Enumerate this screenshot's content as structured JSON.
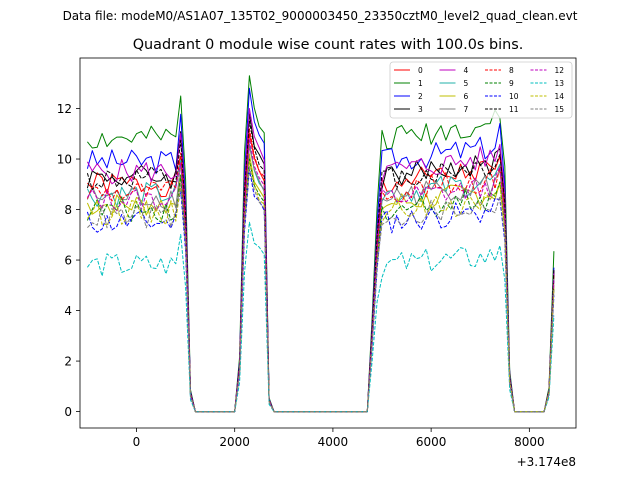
{
  "chart_data": {
    "type": "line",
    "suptitle": "Data file: modeM0/AS1A07_135T02_9000003450_23350cztM0_level2_quad_clean.evt",
    "title": "Quadrant 0 module wise count rates with 100.0s bins.",
    "xlabel": "",
    "ylabel": "",
    "x_offset_label": "+3.174e8",
    "xlim": [
      -1150,
      8950
    ],
    "ylim": [
      -0.65,
      14.0
    ],
    "x_ticks": [
      0,
      2000,
      4000,
      6000,
      8000
    ],
    "x_tick_labels": [
      "0",
      "2000",
      "4000",
      "6000",
      "8000"
    ],
    "y_ticks": [
      0,
      2,
      4,
      6,
      8,
      10,
      12
    ],
    "y_tick_labels": [
      "0",
      "2",
      "4",
      "6",
      "8",
      "10",
      "12"
    ],
    "grid": false,
    "legend_position": "top-right",
    "legend_columns": 4,
    "x": [
      -1000,
      -900,
      -800,
      -700,
      -600,
      -500,
      -400,
      -300,
      -200,
      -100,
      0,
      100,
      200,
      300,
      400,
      500,
      600,
      700,
      800,
      900,
      1000,
      1100,
      1200,
      1300,
      1400,
      1500,
      1600,
      1700,
      1800,
      1900,
      2000,
      2100,
      2200,
      2300,
      2400,
      2500,
      2600,
      2700,
      2800,
      2900,
      3000,
      3100,
      3200,
      3300,
      3400,
      3500,
      3600,
      3700,
      3800,
      3900,
      4000,
      4100,
      4200,
      4300,
      4400,
      4500,
      4600,
      4700,
      4800,
      4900,
      5000,
      5100,
      5200,
      5300,
      5400,
      5500,
      5600,
      5700,
      5800,
      5900,
      6000,
      6100,
      6200,
      6300,
      6400,
      6500,
      6600,
      6700,
      6800,
      6900,
      7000,
      7100,
      7200,
      7300,
      7400,
      7500,
      7600,
      7700,
      7800,
      7900,
      8000,
      8100,
      8200,
      8300,
      8400,
      8500
    ],
    "series": [
      {
        "name": "0",
        "color": "#ff0000",
        "style": "solid",
        "level": 9.0,
        "peak1": 11.0,
        "peak2": 10.4,
        "last": 5.6,
        "seed": 1
      },
      {
        "name": "1",
        "color": "#008000",
        "style": "solid",
        "level": 10.8,
        "peak1": 13.3,
        "peak2": 12.2,
        "last": 6.35,
        "seed": 2
      },
      {
        "name": "2",
        "color": "#0000ff",
        "style": "solid",
        "level": 9.9,
        "peak1": 12.8,
        "peak2": 11.8,
        "last": 5.7,
        "seed": 3
      },
      {
        "name": "3",
        "color": "#000000",
        "style": "solid",
        "level": 9.3,
        "peak1": 11.8,
        "peak2": 11.0,
        "last": 5.5,
        "seed": 4
      },
      {
        "name": "4",
        "color": "#bf00bf",
        "style": "solid",
        "level": 9.5,
        "peak1": 12.0,
        "peak2": 11.0,
        "last": 5.6,
        "seed": 5
      },
      {
        "name": "5",
        "color": "#20b2aa",
        "style": "solid",
        "level": 8.6,
        "peak1": 10.6,
        "peak2": 10.0,
        "last": 5.3,
        "seed": 6
      },
      {
        "name": "6",
        "color": "#bfbf00",
        "style": "solid",
        "level": 8.2,
        "peak1": 10.2,
        "peak2": 9.5,
        "last": 5.0,
        "seed": 7
      },
      {
        "name": "7",
        "color": "#808080",
        "style": "solid",
        "level": 8.5,
        "peak1": 10.5,
        "peak2": 9.8,
        "last": 5.2,
        "seed": 8
      },
      {
        "name": "8",
        "color": "#ff0000",
        "style": "dashed",
        "level": 8.7,
        "peak1": 11.2,
        "peak2": 10.2,
        "last": 5.4,
        "seed": 9
      },
      {
        "name": "9",
        "color": "#008000",
        "style": "dashed",
        "level": 8.0,
        "peak1": 10.0,
        "peak2": 9.4,
        "last": 4.9,
        "seed": 10
      },
      {
        "name": "10",
        "color": "#0000ff",
        "style": "dashed",
        "level": 7.5,
        "peak1": 9.6,
        "peak2": 8.9,
        "last": 4.6,
        "seed": 11
      },
      {
        "name": "11",
        "color": "#000000",
        "style": "dashed",
        "level": 9.2,
        "peak1": 11.5,
        "peak2": 10.6,
        "last": 5.6,
        "seed": 12
      },
      {
        "name": "12",
        "color": "#bf00bf",
        "style": "dashed",
        "level": 8.4,
        "peak1": 10.8,
        "peak2": 9.9,
        "last": 5.2,
        "seed": 13
      },
      {
        "name": "13",
        "color": "#00bfbf",
        "style": "dashed",
        "level": 5.8,
        "peak1": 7.5,
        "peak2": 6.9,
        "last": 3.8,
        "seed": 14
      },
      {
        "name": "14",
        "color": "#bfbf00",
        "style": "dashed",
        "level": 7.9,
        "peak1": 9.9,
        "peak2": 9.2,
        "last": 4.9,
        "seed": 15
      },
      {
        "name": "15",
        "color": "#808080",
        "style": "dashed",
        "level": 7.7,
        "peak1": 9.7,
        "peak2": 9.0,
        "last": 4.8,
        "seed": 16
      }
    ]
  }
}
